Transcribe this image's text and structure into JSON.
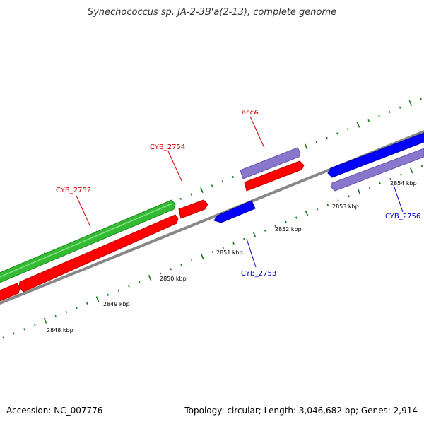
{
  "title": "Synechococcus sp. JA-2-3B'a(2-13), complete genome",
  "footer": {
    "accession": "Accession: NC_007776",
    "summary": "Topology: circular; Length: 3,046,682 bp; Genes: 2,914"
  },
  "colors": {
    "forward_gene": "#ff0000",
    "reverse_gene": "#0000ff",
    "forward_rna": "#33bb33",
    "reverse_rna": "#8877cc",
    "backbone": "#888888",
    "tick": "#117711",
    "forward_label": "#cc0000",
    "reverse_label": "#0000cc"
  },
  "kbp_labels": [
    "2848 kbp",
    "2849 kbp",
    "2850 kbp",
    "2851 kbp",
    "2852 kbp",
    "2853 kbp",
    "2854 kbp"
  ],
  "gene_labels": [
    {
      "text": "CYB_2752",
      "strand": "forward"
    },
    {
      "text": "CYB_2754",
      "strand": "forward"
    },
    {
      "text": "accA",
      "strand": "forward"
    },
    {
      "text": "CYB_2753",
      "strand": "reverse"
    },
    {
      "text": "CYB_2756",
      "strand": "reverse"
    }
  ]
}
